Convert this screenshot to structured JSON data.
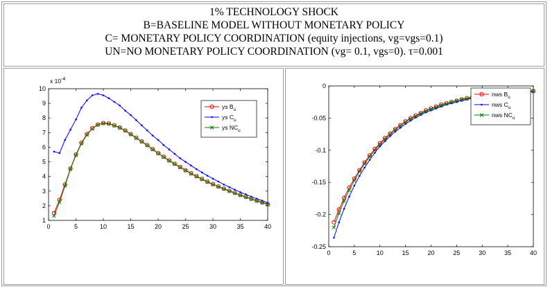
{
  "header": {
    "lines": [
      "1% TECHNOLOGY SHOCK",
      "B=BASELINE MODEL WITHOUT MONETARY POLICY",
      "C= MONETARY POLICY COORDINATION (equity injections, vg=vgs=0.1)",
      "UN=NO MONETARY POLICY COORDINATION (vg= 0.1, vgs=0). τ=0.001"
    ]
  },
  "chart_data": [
    {
      "type": "line",
      "exponent_label": "x 10",
      "exponent_sup": "-4",
      "xlim": [
        0,
        40
      ],
      "ylim": [
        1,
        10
      ],
      "x_ticks": [
        0,
        5,
        10,
        15,
        20,
        25,
        30,
        35,
        40
      ],
      "y_ticks": [
        1,
        2,
        3,
        4,
        5,
        6,
        7,
        8,
        9,
        10
      ],
      "x": [
        1,
        2,
        3,
        4,
        5,
        6,
        7,
        8,
        9,
        10,
        11,
        12,
        13,
        14,
        15,
        16,
        17,
        18,
        19,
        20,
        21,
        22,
        23,
        24,
        25,
        26,
        27,
        28,
        29,
        30,
        31,
        32,
        33,
        34,
        35,
        36,
        37,
        38,
        39,
        40
      ],
      "series": [
        {
          "name": "ys B",
          "sub": "u",
          "color": "#ff0000",
          "marker": "circle",
          "values": [
            1.5,
            2.4,
            3.45,
            4.55,
            5.5,
            6.3,
            6.9,
            7.3,
            7.55,
            7.65,
            7.62,
            7.5,
            7.35,
            7.15,
            6.9,
            6.65,
            6.4,
            6.15,
            5.87,
            5.6,
            5.35,
            5.1,
            4.87,
            4.65,
            4.43,
            4.22,
            4.02,
            3.83,
            3.65,
            3.48,
            3.32,
            3.17,
            3.02,
            2.88,
            2.74,
            2.61,
            2.48,
            2.35,
            2.23,
            2.1
          ]
        },
        {
          "name": "ys C",
          "sub": "u",
          "color": "#0000ff",
          "marker": "dot",
          "values": [
            5.7,
            5.6,
            6.5,
            7.2,
            7.9,
            8.7,
            9.2,
            9.55,
            9.65,
            9.55,
            9.35,
            9.1,
            8.85,
            8.5,
            8.2,
            7.85,
            7.5,
            7.15,
            6.8,
            6.5,
            6.15,
            5.85,
            5.55,
            5.25,
            5.0,
            4.75,
            4.5,
            4.28,
            4.05,
            3.85,
            3.65,
            3.45,
            3.28,
            3.1,
            2.93,
            2.78,
            2.62,
            2.48,
            2.35,
            2.2
          ]
        },
        {
          "name": "ys NC",
          "sub": "u",
          "color": "#008000",
          "marker": "x",
          "values": [
            1.3,
            2.25,
            3.35,
            4.5,
            5.45,
            6.25,
            6.85,
            7.28,
            7.53,
            7.63,
            7.6,
            7.48,
            7.33,
            7.13,
            6.88,
            6.63,
            6.38,
            6.13,
            5.85,
            5.58,
            5.33,
            5.08,
            4.85,
            4.63,
            4.41,
            4.2,
            4.0,
            3.81,
            3.63,
            3.46,
            3.3,
            3.15,
            3.0,
            2.86,
            2.72,
            2.59,
            2.46,
            2.33,
            2.21,
            2.08
          ]
        }
      ]
    },
    {
      "type": "line",
      "xlim": [
        0,
        40
      ],
      "ylim": [
        -0.25,
        0
      ],
      "x_ticks": [
        0,
        5,
        10,
        15,
        20,
        25,
        30,
        35,
        40
      ],
      "y_ticks": [
        0,
        -0.05,
        -0.1,
        -0.15,
        -0.2,
        -0.25
      ],
      "y_tick_labels": [
        "0",
        "-0.05",
        "-0.1",
        "-0.15",
        "-0.2",
        "-0.25"
      ],
      "x": [
        1,
        2,
        3,
        4,
        5,
        6,
        7,
        8,
        9,
        10,
        11,
        12,
        13,
        14,
        15,
        16,
        17,
        18,
        19,
        20,
        21,
        22,
        23,
        24,
        25,
        26,
        27,
        28,
        29,
        30,
        31,
        32,
        33,
        34,
        35,
        36,
        37,
        38,
        39,
        40
      ],
      "series": [
        {
          "name": "nws B",
          "sub": "u",
          "color": "#ff0000",
          "marker": "circle",
          "values": [
            -0.212,
            -0.192,
            -0.174,
            -0.158,
            -0.144,
            -0.131,
            -0.119,
            -0.108,
            -0.098,
            -0.089,
            -0.081,
            -0.074,
            -0.067,
            -0.061,
            -0.055,
            -0.05,
            -0.046,
            -0.042,
            -0.038,
            -0.035,
            -0.032,
            -0.029,
            -0.027,
            -0.025,
            -0.023,
            -0.021,
            -0.019,
            -0.018,
            -0.017,
            -0.016,
            -0.015,
            -0.014,
            -0.013,
            -0.012,
            -0.011,
            -0.011,
            -0.01,
            -0.009,
            -0.009,
            -0.008
          ]
        },
        {
          "name": "nws C",
          "sub": "u",
          "color": "#0000ff",
          "marker": "dot",
          "values": [
            -0.236,
            -0.212,
            -0.191,
            -0.172,
            -0.155,
            -0.14,
            -0.127,
            -0.115,
            -0.104,
            -0.094,
            -0.086,
            -0.078,
            -0.071,
            -0.065,
            -0.059,
            -0.054,
            -0.049,
            -0.045,
            -0.041,
            -0.038,
            -0.035,
            -0.032,
            -0.029,
            -0.027,
            -0.025,
            -0.023,
            -0.021,
            -0.019,
            -0.018,
            -0.017,
            -0.016,
            -0.015,
            -0.014,
            -0.013,
            -0.012,
            -0.011,
            -0.011,
            -0.01,
            -0.009,
            -0.009
          ]
        },
        {
          "name": "nws NC",
          "sub": "u",
          "color": "#008000",
          "marker": "x",
          "values": [
            -0.22,
            -0.198,
            -0.179,
            -0.162,
            -0.147,
            -0.133,
            -0.121,
            -0.11,
            -0.1,
            -0.091,
            -0.083,
            -0.075,
            -0.068,
            -0.062,
            -0.056,
            -0.051,
            -0.047,
            -0.043,
            -0.039,
            -0.036,
            -0.033,
            -0.03,
            -0.028,
            -0.025,
            -0.023,
            -0.021,
            -0.02,
            -0.018,
            -0.017,
            -0.016,
            -0.015,
            -0.014,
            -0.013,
            -0.012,
            -0.011,
            -0.011,
            -0.01,
            -0.009,
            -0.009,
            -0.008
          ]
        }
      ]
    }
  ]
}
